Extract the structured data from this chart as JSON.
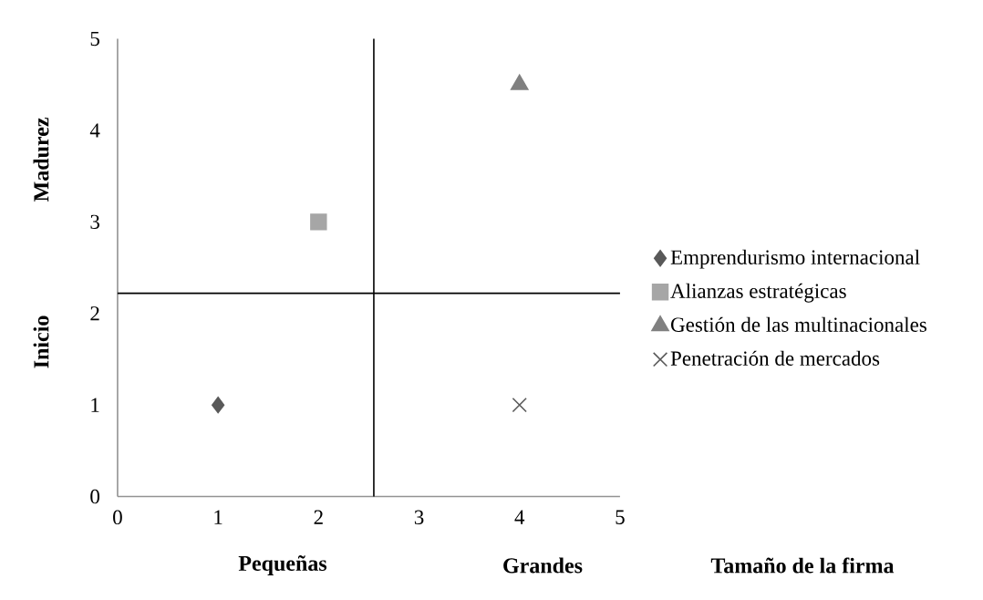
{
  "chart_data": {
    "type": "scatter",
    "xlabel": "Tamaño de la firma",
    "annotations": [
      "Madurez",
      "Inicio",
      "Pequeñas",
      "Grandes"
    ],
    "xlim": [
      0,
      5
    ],
    "ylim": [
      0,
      5
    ],
    "xticks": [
      0,
      1,
      2,
      3,
      4,
      5
    ],
    "yticks": [
      0,
      1,
      2,
      3,
      4,
      5
    ],
    "grid": false,
    "legend": "right",
    "ref_lines": [
      {
        "axis": "x",
        "value": 2.55,
        "color": "#000000"
      },
      {
        "axis": "y",
        "value": 2.22,
        "color": "#000000"
      }
    ],
    "series": [
      {
        "name": "Emprendurismo internacional",
        "color": "#595959",
        "marker": "diamond",
        "x": [
          1
        ],
        "values": [
          1
        ]
      },
      {
        "name": "Alianzas estratégicas",
        "color": "#a6a6a6",
        "marker": "square",
        "x": [
          2
        ],
        "values": [
          3
        ]
      },
      {
        "name": "Gestión de las multinacionales",
        "color": "#808080",
        "marker": "triangle",
        "x": [
          4
        ],
        "values": [
          4.5
        ]
      },
      {
        "name": "Penetración de mercados",
        "color": "#595959",
        "marker": "cross",
        "x": [
          4
        ],
        "values": [
          1
        ]
      }
    ]
  }
}
